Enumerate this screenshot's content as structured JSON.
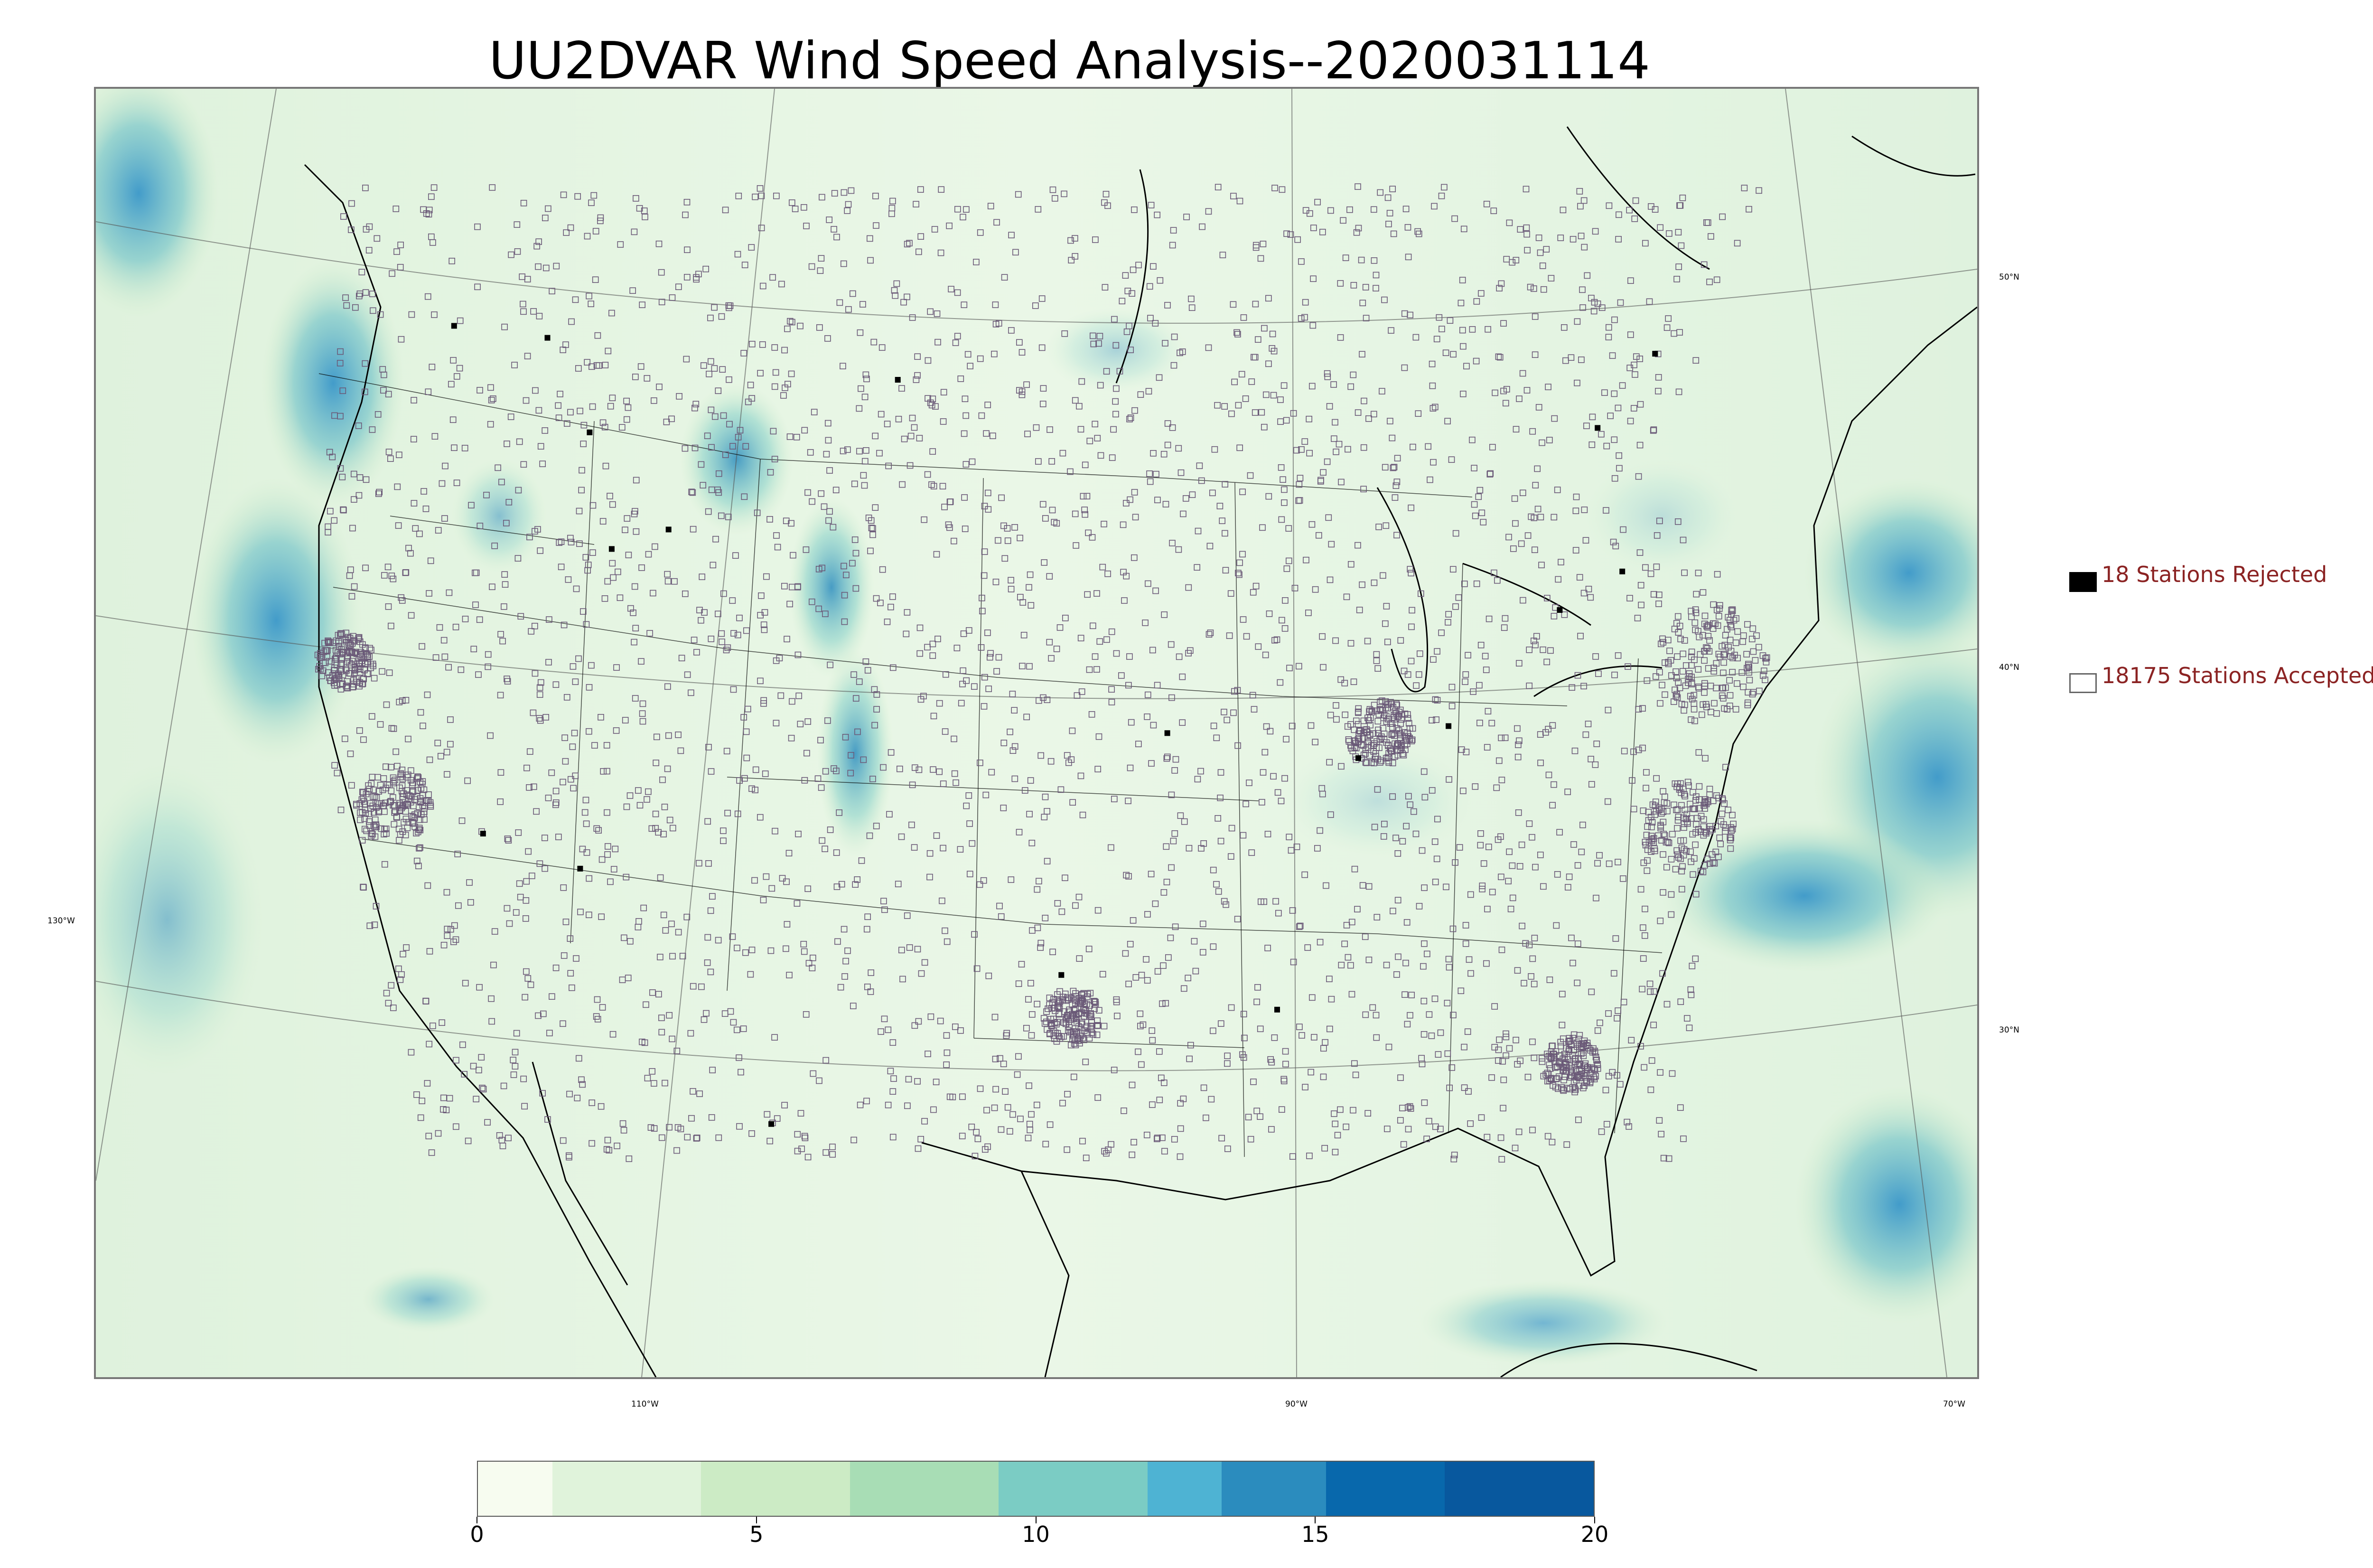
{
  "title": "UU2DVAR Wind Speed Analysis--2020031114",
  "map": {
    "lat_labels": [
      "50°N",
      "40°N",
      "30°N"
    ],
    "lon_labels": [
      "130°W",
      "110°W",
      "90°W",
      "70°W"
    ],
    "colors": {
      "land": "#eaf7e7",
      "ocean_strong": "#3a97c9",
      "ocean_mid": "#79c6c9",
      "station_outline": "#6b5a78",
      "coast": "#000000"
    }
  },
  "legend": {
    "rejected": {
      "label": "18 Stations Rejected",
      "count": 18,
      "marker": "filled-black-square"
    },
    "accepted": {
      "label": "18175 Stations Accepted",
      "count": 18175,
      "marker": "hollow-square"
    }
  },
  "colorbar": {
    "ticks": [
      "0",
      "5",
      "10",
      "15",
      "20"
    ],
    "range": [
      0,
      20
    ],
    "colors": [
      "#f7fcf0",
      "#e0f3db",
      "#ccebc5",
      "#a8ddb5",
      "#7bccc4",
      "#4eb3d3",
      "#2b8cbe",
      "#0868ac",
      "#08589e"
    ]
  }
}
